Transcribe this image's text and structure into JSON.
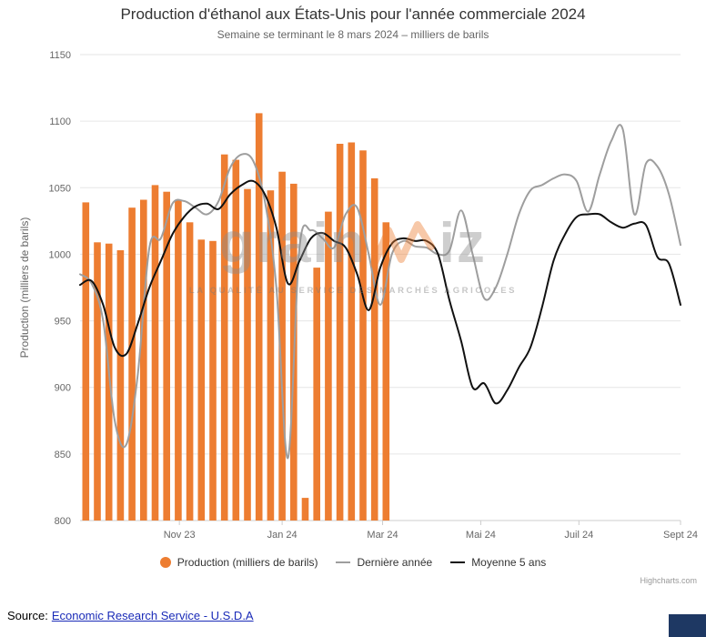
{
  "chart_data": {
    "type": "combo",
    "title": "Production d'éthanol aux États-Unis pour l'année commerciale 2024",
    "subtitle": "Semaine se terminant le 8 mars 2024 – milliers de barils",
    "ylabel": "Production (milliers de barils)",
    "xlabel": "",
    "ylim": [
      800,
      1150
    ],
    "y_ticks": [
      800,
      850,
      900,
      950,
      1000,
      1050,
      1100,
      1150
    ],
    "x_range_weeks": [
      0,
      52
    ],
    "x_ticks": [
      {
        "label": "Nov 23",
        "week": 8.6
      },
      {
        "label": "Jan 24",
        "week": 17.5
      },
      {
        "label": "Mar 24",
        "week": 26.2
      },
      {
        "label": "Mai 24",
        "week": 34.7
      },
      {
        "label": "Juil 24",
        "week": 43.2
      },
      {
        "label": "Sept 24",
        "week": 52
      }
    ],
    "grid": "horizontal",
    "legend_position": "bottom",
    "series": [
      {
        "name": "Production (milliers de barils)",
        "type": "bar",
        "color": "#ED7D31",
        "start_week": 0,
        "values": [
          1039,
          1009,
          1008,
          1003,
          1035,
          1041,
          1052,
          1047,
          1041,
          1024,
          1011,
          1010,
          1075,
          1071,
          1049,
          1106,
          1048,
          1062,
          1053,
          817,
          990,
          1032,
          1083,
          1084,
          1078,
          1057,
          1024
        ]
      },
      {
        "name": "Dernière année",
        "type": "line",
        "color": "#9E9E9E",
        "start_week": 0,
        "values": [
          985,
          978,
          950,
          875,
          857,
          910,
          1005,
          1012,
          1038,
          1040,
          1035,
          1030,
          1040,
          1065,
          1075,
          1070,
          1040,
          975,
          847,
          1005,
          1018,
          1012,
          1005,
          1030,
          1035,
          1000,
          962,
          1000,
          1010,
          1006,
          1005,
          1000,
          1003,
          1033,
          1000,
          967,
          975,
          1000,
          1030,
          1048,
          1052,
          1057,
          1060,
          1055,
          1032,
          1060,
          1085,
          1094,
          1030,
          1068,
          1066,
          1045,
          1007
        ]
      },
      {
        "name": "Moyenne 5 ans",
        "type": "line",
        "color": "#111111",
        "start_week": 0,
        "values": [
          977,
          980,
          962,
          930,
          925,
          948,
          975,
          995,
          1015,
          1028,
          1036,
          1038,
          1034,
          1045,
          1052,
          1055,
          1045,
          1020,
          978,
          995,
          1012,
          1016,
          1010,
          1005,
          985,
          958,
          990,
          1008,
          1012,
          1010,
          1010,
          1000,
          965,
          935,
          900,
          903,
          888,
          898,
          915,
          930,
          960,
          995,
          1015,
          1028,
          1030,
          1030,
          1024,
          1020,
          1023,
          1022,
          998,
          993,
          962
        ]
      }
    ]
  },
  "watermark": {
    "name_left": "grain",
    "name_right": "iz",
    "tagline": "LA QUALITÉ AU SERVICE DES MARCHÉS AGRICOLES"
  },
  "credits": "Highcharts.com",
  "footer": {
    "source_label": "Source:",
    "source_link": "Economic Research Service - U.S.D.A"
  }
}
